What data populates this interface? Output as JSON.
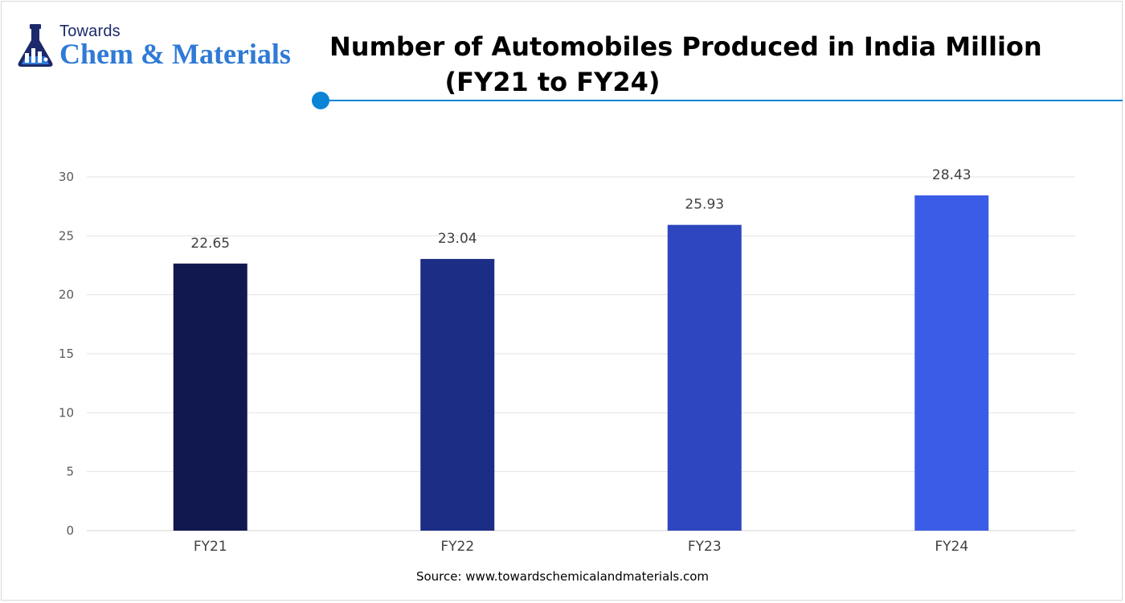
{
  "logo": {
    "line1": "Towards",
    "line2": "Chem & Materials"
  },
  "title": {
    "line1": "Number of Automobiles Produced in India Million",
    "line2": "(FY21 to FY24)"
  },
  "colors": {
    "accent": "#0a84d6",
    "bars": [
      "#10184f",
      "#1c2d85",
      "#2e46bf",
      "#3b5ce6"
    ],
    "grid": "#e3e3e3",
    "axis": "#d0d0d0"
  },
  "chart_data": {
    "type": "bar",
    "categories": [
      "FY21",
      "FY22",
      "FY23",
      "FY24"
    ],
    "values": [
      22.65,
      23.04,
      25.93,
      28.43
    ],
    "data_labels": [
      "22.65",
      "23.04",
      "25.93",
      "28.43"
    ],
    "ylim": [
      0,
      30
    ],
    "yticks": [
      0,
      5,
      10,
      15,
      20,
      25,
      30
    ],
    "title": "Number of Automobiles Produced in India Million (FY21 to FY24)",
    "xlabel": "",
    "ylabel": "",
    "grid": true,
    "legend": "none"
  },
  "source": "Source: www.towardschemicalandmaterials.com"
}
